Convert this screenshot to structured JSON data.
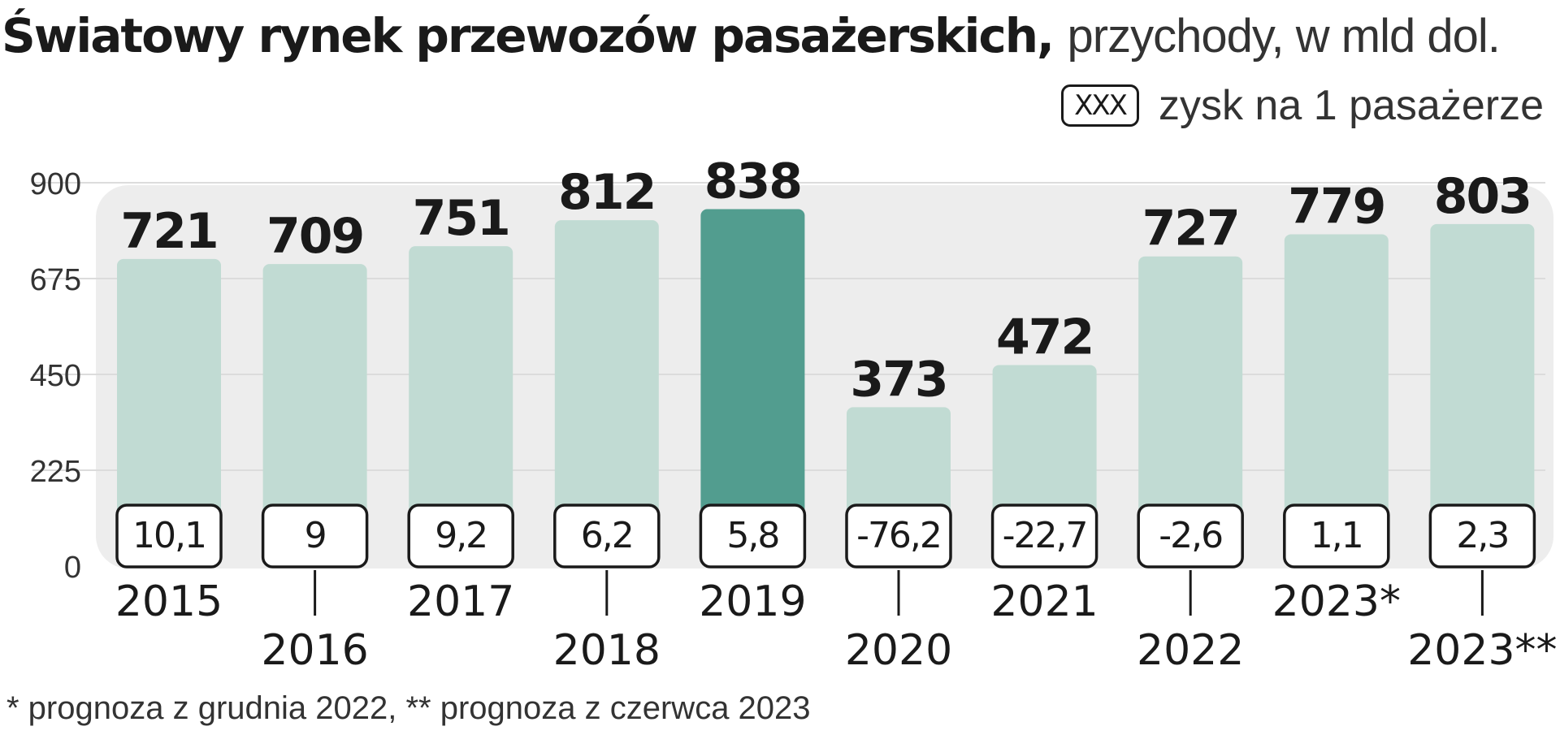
{
  "header": {
    "title_bold": "Światowy rynek przewozów pasażerskich,",
    "title_light": "przychody, w mld dol."
  },
  "legend": {
    "box_label": "XXX",
    "text": "zysk na 1 pasażerze"
  },
  "footnote": "* prognoza z grudnia 2022, ** prognoza z czerwca 2023",
  "colors": {
    "bar": "#c1dbd3",
    "bar_highlight": "#529d8f",
    "plot_bg": "#ededed",
    "grid": "#dcdcdc",
    "text": "#1a1a1a"
  },
  "chart_data": {
    "type": "bar",
    "categories": [
      "2015",
      "2016",
      "2017",
      "2018",
      "2019",
      "2020",
      "2021",
      "2022",
      "2023*",
      "2023**"
    ],
    "values": [
      721,
      709,
      751,
      812,
      838,
      373,
      472,
      727,
      779,
      803
    ],
    "value_labels": [
      "721",
      "709",
      "751",
      "812",
      "838",
      "373",
      "472",
      "727",
      "779",
      "803"
    ],
    "profit_per_passenger": [
      "10,1",
      "9",
      "9,2",
      "6,2",
      "5,8",
      "-76,2",
      "-22,7",
      "-2,6",
      "1,1",
      "2,3"
    ],
    "highlight_category": "2019",
    "ylim": [
      0,
      900
    ],
    "yticks": [
      "0",
      "225",
      "450",
      "675",
      "900"
    ],
    "grid": true,
    "xlabel": "",
    "ylabel": ""
  }
}
